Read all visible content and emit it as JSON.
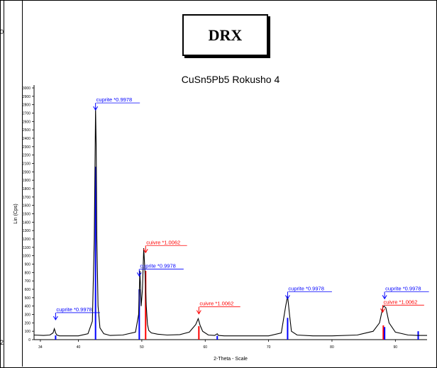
{
  "header": {
    "badge": "DRX"
  },
  "edge_labels": {
    "left_top": "0",
    "left_bottom": "2"
  },
  "chart_data": {
    "type": "line",
    "title": "CuSn5Pb5 Rokusho 4",
    "xlabel": "2-Theta - Scale",
    "ylabel": "Lin (Cps)",
    "xlim": [
      33,
      95
    ],
    "ylim": [
      0,
      3000
    ],
    "x_ticks": [
      34,
      40,
      50,
      60,
      70,
      80,
      90
    ],
    "y_ticks": [
      0,
      100,
      200,
      300,
      400,
      500,
      600,
      700,
      800,
      900,
      1000,
      1100,
      1200,
      1300,
      1400,
      1500,
      1600,
      1700,
      1800,
      1900,
      2000,
      2100,
      2200,
      2300,
      2400,
      2500,
      2600,
      2700,
      2800,
      2900,
      3000
    ],
    "series": [
      {
        "color": "#000000",
        "x": [
          33.0,
          34.5,
          35.5,
          36.0,
          36.2,
          36.4,
          36.6,
          37.0,
          38.0,
          40.0,
          41.5,
          42.2,
          42.5,
          42.7,
          42.8,
          42.9,
          43.1,
          43.4,
          44.0,
          45.0,
          47.0,
          49.0,
          49.5,
          49.7,
          49.9,
          50.1,
          50.3,
          50.5,
          50.7,
          50.9,
          51.1,
          51.5,
          52.5,
          54.0,
          56.0,
          57.5,
          58.5,
          58.9,
          59.2,
          59.6,
          60.5,
          61.5,
          61.9,
          62.0,
          62.1,
          63.0,
          66.0,
          70.0,
          72.0,
          72.7,
          73.0,
          73.3,
          73.6,
          74.5,
          77.0,
          80.0,
          84.0,
          86.5,
          87.5,
          88.0,
          88.2,
          88.5,
          89.0,
          90.0,
          92.0,
          93.5,
          95.0
        ],
        "y": [
          55,
          50,
          55,
          80,
          130,
          80,
          55,
          45,
          45,
          45,
          70,
          220,
          1200,
          2760,
          2300,
          1200,
          400,
          140,
          70,
          50,
          55,
          90,
          300,
          820,
          400,
          600,
          1090,
          800,
          400,
          180,
          110,
          80,
          65,
          55,
          60,
          90,
          180,
          250,
          170,
          100,
          55,
          50,
          70,
          60,
          50,
          45,
          45,
          45,
          80,
          400,
          520,
          300,
          100,
          55,
          45,
          45,
          55,
          100,
          200,
          380,
          400,
          380,
          200,
          90,
          55,
          50,
          50
        ]
      }
    ],
    "reference_sticks": [
      {
        "color": "#0000ff",
        "x": 36.4,
        "y": 50
      },
      {
        "color": "#0000ff",
        "x": 42.7,
        "y": 2060
      },
      {
        "color": "#0000ff",
        "x": 49.6,
        "y": 600
      },
      {
        "color": "#ff0000",
        "x": 50.6,
        "y": 820
      },
      {
        "color": "#ff0000",
        "x": 59.0,
        "y": 160
      },
      {
        "color": "#0000ff",
        "x": 61.9,
        "y": 45
      },
      {
        "color": "#0000ff",
        "x": 73.0,
        "y": 260
      },
      {
        "color": "#ff0000",
        "x": 88.1,
        "y": 170
      },
      {
        "color": "#0000ff",
        "x": 88.3,
        "y": 150
      },
      {
        "color": "#0000ff",
        "x": 93.6,
        "y": 100
      }
    ],
    "annotations": [
      {
        "text": "cuprite *0.9978",
        "color": "#0000ff",
        "x": 36.4,
        "y": 330
      },
      {
        "text": "cuprite *0.9978",
        "color": "#0000ff",
        "x": 42.7,
        "y": 2830
      },
      {
        "text": "cuprite *0.9978",
        "color": "#0000ff",
        "x": 49.6,
        "y": 850
      },
      {
        "text": "cuivre *1.0062",
        "color": "#ff0000",
        "x": 50.6,
        "y": 1130
      },
      {
        "text": "cuivre *1.0062",
        "color": "#ff0000",
        "x": 59.0,
        "y": 400
      },
      {
        "text": "cuprite *0.9978",
        "color": "#0000ff",
        "x": 73.0,
        "y": 580
      },
      {
        "text": "cuivre *1.0062",
        "color": "#ff0000",
        "x": 88.0,
        "y": 420
      },
      {
        "text": "cuprite *0.9978",
        "color": "#0000ff",
        "x": 88.3,
        "y": 580
      }
    ]
  }
}
